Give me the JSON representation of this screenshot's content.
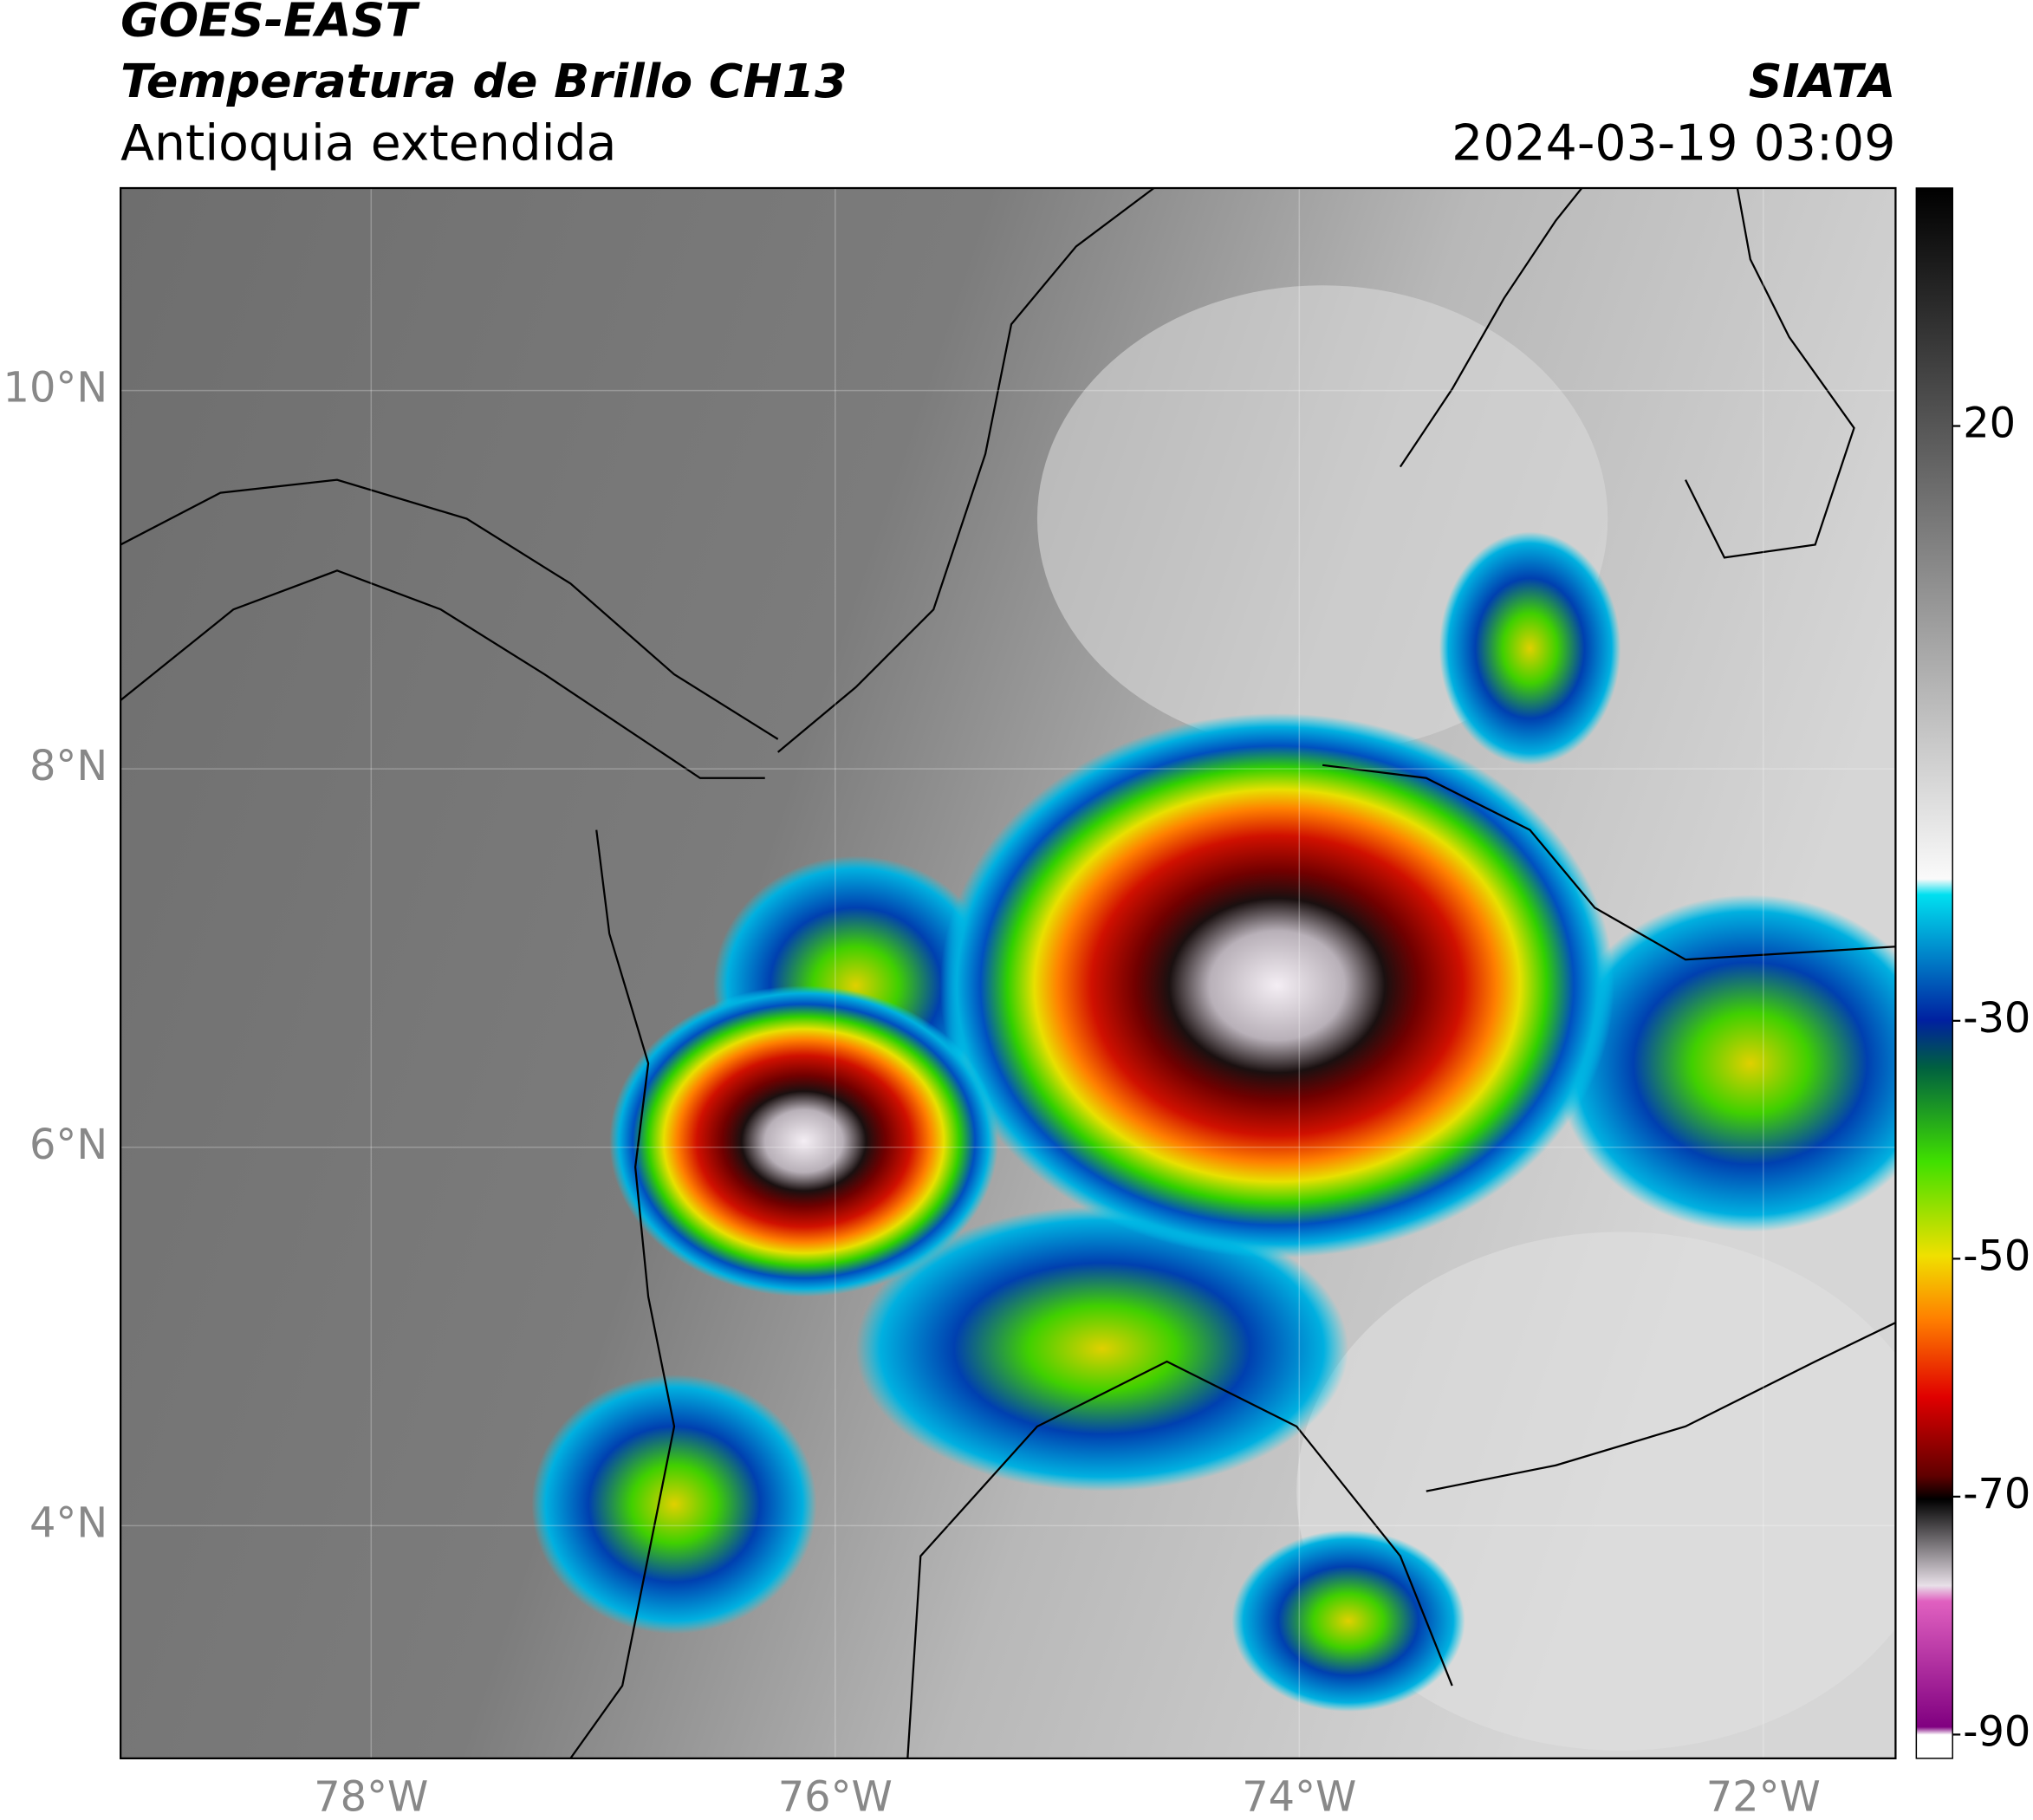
{
  "header": {
    "title": "GOES-EAST",
    "subtitle": "Temperatura de Brillo CH13",
    "region": "Antioquia extendida",
    "source": "SIATA",
    "datetime": "2024-03-19 03:09"
  },
  "map": {
    "xlim": [
      -79.08,
      -71.43
    ],
    "ylim": [
      2.77,
      11.07
    ],
    "xticks": [
      {
        "value": -78,
        "label": "78°W"
      },
      {
        "value": -76,
        "label": "76°W"
      },
      {
        "value": -74,
        "label": "74°W"
      },
      {
        "value": -72,
        "label": "72°W"
      }
    ],
    "yticks": [
      {
        "value": 10,
        "label": "10°N"
      },
      {
        "value": 8,
        "label": "8°N"
      },
      {
        "value": 6,
        "label": "6°N"
      },
      {
        "value": 4,
        "label": "4°N"
      }
    ],
    "grid": true
  },
  "colorbar": {
    "lim": [
      -92,
      40
    ],
    "ticks": [
      20,
      -30,
      -50,
      -70,
      -90
    ]
  }
}
